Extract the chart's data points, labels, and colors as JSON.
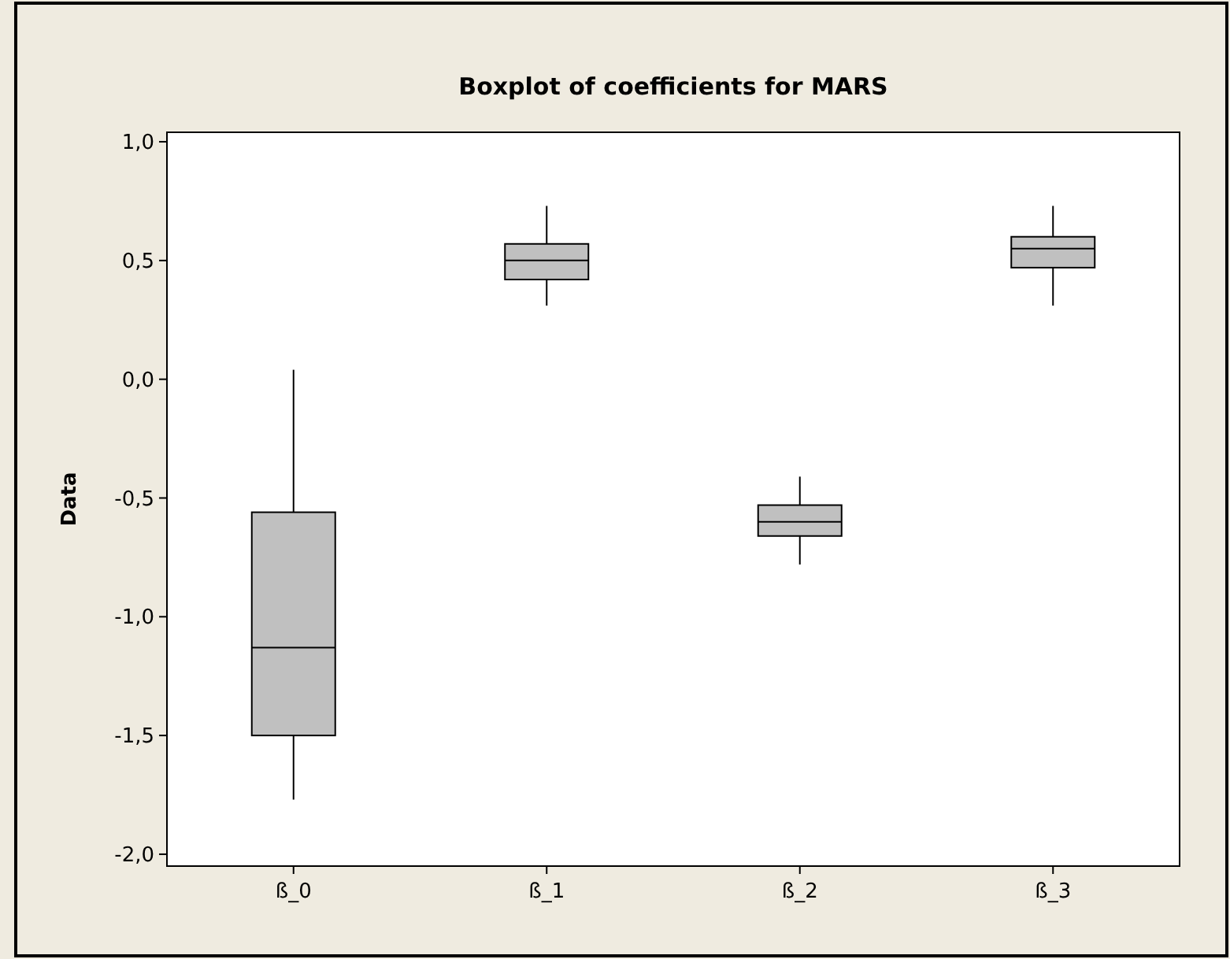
{
  "chart_data": {
    "type": "box",
    "title": "Boxplot of coefficients for MARS",
    "ylabel": "Data",
    "categories": [
      "ß_0",
      "ß_1",
      "ß_2",
      "ß_3"
    ],
    "color": "#c0c0c0",
    "boxes": [
      {
        "low": -1.77,
        "q1": -1.5,
        "median": -1.13,
        "q3": -0.56,
        "high": 0.04
      },
      {
        "low": 0.31,
        "q1": 0.42,
        "median": 0.5,
        "q3": 0.57,
        "high": 0.73
      },
      {
        "low": -0.78,
        "q1": -0.66,
        "median": -0.6,
        "q3": -0.53,
        "high": -0.41
      },
      {
        "low": 0.31,
        "q1": 0.47,
        "median": 0.55,
        "q3": 0.6,
        "high": 0.73
      }
    ],
    "ylim": [
      -2.05,
      1.04
    ],
    "yticks": [
      {
        "value": -2,
        "label": "-2,0"
      },
      {
        "value": -1.5,
        "label": "-1,5"
      },
      {
        "value": -1,
        "label": "-1,0"
      },
      {
        "value": -0.5,
        "label": "-0,5"
      },
      {
        "value": 0,
        "label": "0,0"
      },
      {
        "value": 0.5,
        "label": "0,5"
      },
      {
        "value": 1,
        "label": "1,0"
      }
    ],
    "grid": false
  }
}
